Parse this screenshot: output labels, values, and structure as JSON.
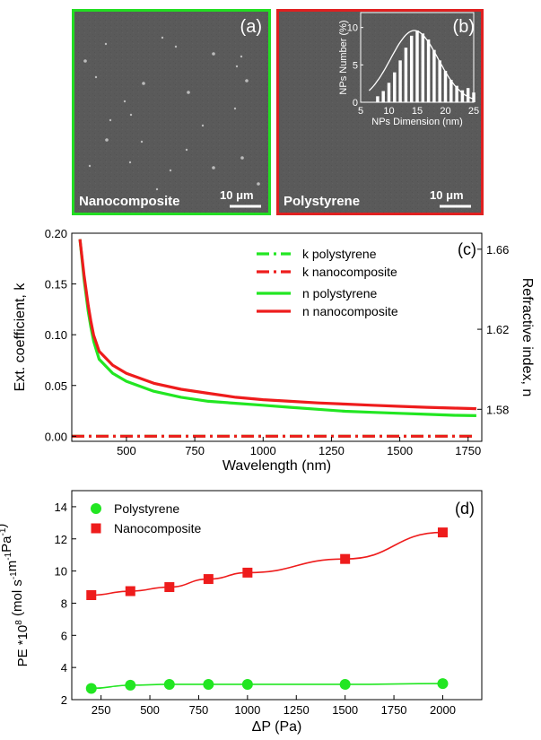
{
  "panel_a": {
    "label": "(a)",
    "caption": "Nanocomposite",
    "scale_value": "10 ",
    "scale_unit": "μm",
    "border_color": "#22dd22"
  },
  "panel_b": {
    "label": "(b)",
    "caption": "Polystyrene",
    "scale_value": "10 ",
    "scale_unit": "μm",
    "border_color": "#e02020"
  },
  "colors": {
    "green": "#22e622",
    "red": "#ee1c1c",
    "sem_bg": "#5a5a5a"
  },
  "chart_data": [
    {
      "type": "bar",
      "panel": "inset-histogram",
      "xlabel": "NPs Dimension (nm)",
      "ylabel": "NPs Number (%)",
      "xlim": [
        5,
        25
      ],
      "ylim": [
        0,
        12
      ],
      "xticks": [
        "5",
        "10",
        "15",
        "20",
        "25"
      ],
      "yticks": [
        "0",
        "5",
        "10"
      ],
      "x": [
        8,
        9,
        10,
        11,
        12,
        13,
        14,
        15,
        16,
        17,
        18,
        19,
        20,
        21,
        22,
        23,
        24,
        25
      ],
      "values": [
        0.8,
        1.5,
        2.6,
        4.0,
        5.6,
        7.3,
        8.9,
        9.6,
        9.2,
        8.4,
        7.0,
        5.6,
        4.2,
        3.0,
        2.2,
        1.6,
        1.9,
        1.3
      ],
      "fit": "gaussian",
      "fit_center": 14.5,
      "fit_peak": 9.6,
      "fit_sigma": 4.2
    },
    {
      "type": "line",
      "panel": "c",
      "label": "(c)",
      "xlabel": "Wavelength (nm)",
      "ylabel": "Ext. coefficient, k",
      "y2label": "Refractive index, n",
      "xlim": [
        300,
        1800
      ],
      "ylim": [
        -0.005,
        0.2
      ],
      "y2lim": [
        1.564,
        1.668
      ],
      "xticks": [
        "500",
        "750",
        "1000",
        "1250",
        "1500",
        "1750"
      ],
      "yticks": [
        "0.00",
        "0.05",
        "0.10",
        "0.15",
        "0.20"
      ],
      "y2ticks": [
        "1.58",
        "1.62",
        "1.66"
      ],
      "legend_position": "top-right",
      "series": [
        {
          "name": "k polystyrene",
          "style": "dash-dot",
          "color": "#22e622",
          "x": [
            300,
            315,
            330,
            345,
            360,
            380,
            400,
            450,
            500,
            550,
            600,
            700,
            800,
            900,
            1000,
            1100,
            1200,
            1300,
            1400,
            1500,
            1600,
            1700,
            1780
          ],
          "y": [
            0.0,
            0.0,
            0.0,
            0.0,
            0.0,
            0.0,
            0.0,
            0.0,
            0.0,
            0.0,
            0.0,
            0.0,
            0.0,
            0.0,
            0.0,
            0.0,
            0.0,
            0.0,
            0.0,
            0.0,
            0.0,
            0.0,
            0.0
          ]
        },
        {
          "name": "k nanocomposite",
          "style": "dash-dot",
          "color": "#ee1c1c",
          "x": [
            300,
            315,
            330,
            345,
            360,
            380,
            400,
            450,
            500,
            550,
            600,
            700,
            800,
            900,
            1000,
            1100,
            1200,
            1300,
            1400,
            1500,
            1600,
            1700,
            1780
          ],
          "y": [
            0.0,
            0.0,
            0.0,
            0.0,
            0.0,
            0.0,
            0.0,
            0.0,
            0.0,
            0.0,
            0.0,
            0.0,
            0.0,
            0.0,
            0.0,
            0.0,
            0.0,
            0.0,
            0.0,
            0.0,
            0.0,
            0.0,
            0.0
          ]
        },
        {
          "name": "n polystyrene",
          "style": "solid",
          "color": "#22e622",
          "axis": "right",
          "x": [
            330,
            345,
            360,
            370,
            380,
            400,
            450,
            500,
            600,
            700,
            800,
            900,
            1000,
            1100,
            1200,
            1300,
            1400,
            1500,
            1600,
            1700,
            1780
          ],
          "y": [
            1.665,
            1.645,
            1.629,
            1.621,
            1.614,
            1.605,
            1.598,
            1.594,
            1.589,
            1.586,
            1.584,
            1.583,
            1.582,
            1.581,
            1.58,
            1.579,
            1.5785,
            1.578,
            1.5775,
            1.577,
            1.5768
          ]
        },
        {
          "name": "n nanocomposite",
          "style": "solid",
          "color": "#ee1c1c",
          "axis": "right",
          "x": [
            330,
            345,
            360,
            370,
            380,
            400,
            450,
            500,
            600,
            700,
            800,
            900,
            1000,
            1100,
            1200,
            1300,
            1400,
            1500,
            1600,
            1700,
            1780
          ],
          "y": [
            1.665,
            1.647,
            1.632,
            1.624,
            1.617,
            1.609,
            1.602,
            1.598,
            1.593,
            1.59,
            1.588,
            1.586,
            1.5848,
            1.584,
            1.5832,
            1.5826,
            1.582,
            1.5815,
            1.581,
            1.5806,
            1.5803
          ]
        }
      ]
    },
    {
      "type": "scatter",
      "panel": "d",
      "label": "(d)",
      "xlabel": "ΔP (Pa)",
      "ylabel_main": "PE *10",
      "ylabel_exp": "8",
      "ylabel_unit": " (mol s",
      "ylabel_e1": "-1",
      "ylabel_m": "m",
      "ylabel_e2": "-1",
      "ylabel_pa": "Pa",
      "ylabel_e3": "-1",
      "ylabel_end": ")",
      "xlim": [
        100,
        2200
      ],
      "ylim": [
        2,
        15
      ],
      "xticks": [
        "250",
        "500",
        "750",
        "1000",
        "1250",
        "1500",
        "1750",
        "2000"
      ],
      "yticks": [
        "2",
        "4",
        "6",
        "8",
        "10",
        "12",
        "14"
      ],
      "legend_position": "top-left",
      "series": [
        {
          "name": "Polystyrene",
          "marker": "circle",
          "color": "#22e622",
          "x": [
            200,
            400,
            600,
            800,
            1000,
            1500,
            2000
          ],
          "y": [
            2.7,
            2.9,
            2.95,
            2.95,
            2.95,
            2.95,
            3.0
          ]
        },
        {
          "name": "Nanocomposite",
          "marker": "square",
          "color": "#ee1c1c",
          "x": [
            200,
            400,
            600,
            800,
            1000,
            1500,
            2000
          ],
          "y": [
            8.5,
            8.75,
            9.0,
            9.5,
            9.9,
            10.75,
            12.4
          ]
        }
      ]
    }
  ]
}
